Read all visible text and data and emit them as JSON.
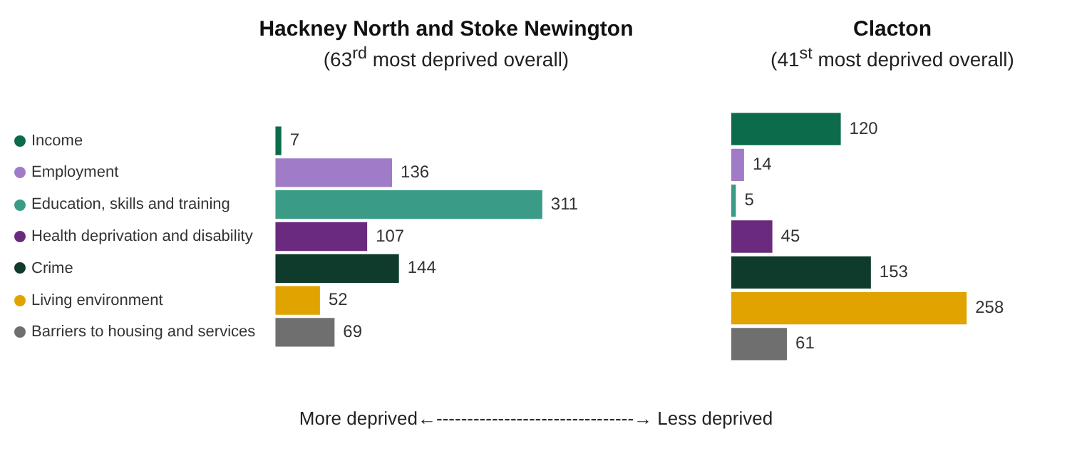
{
  "chart_data": [
    {
      "type": "bar",
      "title": "Hackney North and Stoke Newington",
      "subtitle": "(63$^{rd}$ most deprived overall)",
      "orientation": "horizontal",
      "data_labels": true,
      "tick_labels": "y",
      "categories": [
        "Income",
        "Employment",
        "Education, skills and training",
        "Health deprivation and disability",
        "Crime",
        "Living environment",
        "Barriers to housing and services"
      ],
      "values": [
        7,
        136,
        311,
        107,
        144,
        52,
        69
      ],
      "colors": [
        "#0b6b4b",
        "#a07cc8",
        "#3a9c86",
        "#6a2a7e",
        "#0f3b2c",
        "#e0a300",
        "#6f6f6f"
      ],
      "annotations": [
        "More deprived←--------------------------------→ Less deprived"
      ]
    },
    {
      "type": "bar",
      "title": "Clacton",
      "subtitle": "(41$^{st}$ most deprived overall)",
      "orientation": "horizontal",
      "data_labels": true,
      "tick_labels": false,
      "categories": [
        null,
        null,
        null,
        null,
        null,
        null,
        null
      ],
      "values": [
        120,
        14,
        5,
        45,
        153,
        258,
        61
      ],
      "colors": [
        "#0b6b4b",
        "#a07cc8",
        "#3a9c86",
        "#6a2a7e",
        "#0f3b2c",
        "#e0a300",
        "#6f6f6f"
      ]
    }
  ]
}
